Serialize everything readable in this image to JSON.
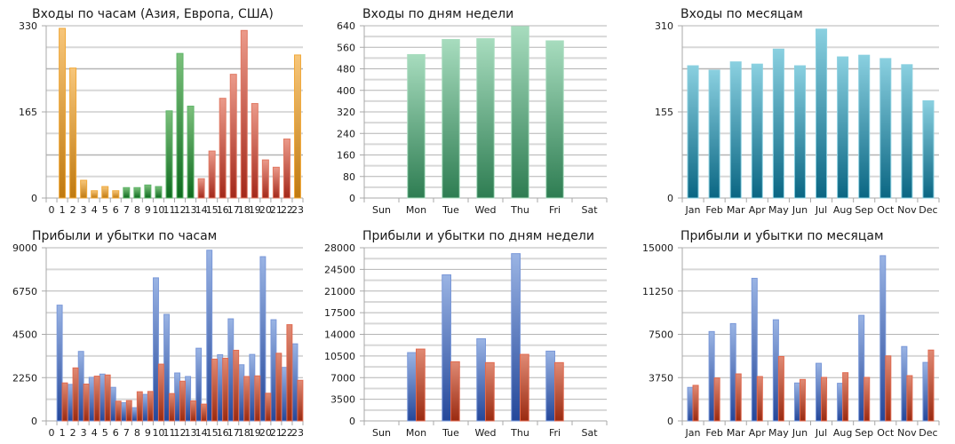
{
  "chart_data": [
    {
      "id": "entries-by-hour",
      "type": "bar",
      "title": "Входы по часам (Азия, Европа, США)",
      "xlabel": "",
      "ylabel": "",
      "ylim": [
        0,
        330
      ],
      "yticks": [
        "0",
        "165",
        "330"
      ],
      "grid": true,
      "categories": [
        "0",
        "1",
        "2",
        "3",
        "4",
        "5",
        "6",
        "7",
        "8",
        "9",
        "10",
        "11",
        "12",
        "13",
        "14",
        "15",
        "16",
        "17",
        "18",
        "19",
        "20",
        "21",
        "22",
        "23"
      ],
      "values": [
        0,
        325,
        249,
        34,
        14,
        22,
        14,
        20,
        20,
        25,
        22,
        167,
        277,
        176,
        37,
        90,
        191,
        237,
        321,
        181,
        73,
        59,
        113,
        274
      ],
      "color_groups": [
        "none",
        "asia",
        "asia",
        "asia",
        "asia",
        "asia",
        "asia",
        "europe",
        "europe",
        "europe",
        "europe",
        "europe",
        "europe",
        "europe",
        "usa",
        "usa",
        "usa",
        "usa",
        "usa",
        "usa",
        "usa",
        "usa",
        "usa",
        "asia"
      ],
      "palette": {
        "asia": [
          "#f7c67a",
          "#c07a10"
        ],
        "europe": [
          "#7cc07c",
          "#0d6a1e"
        ],
        "usa": [
          "#eb9a8a",
          "#a3281a"
        ],
        "none": [
          "#ffffff",
          "#ffffff"
        ]
      },
      "legend": "none"
    },
    {
      "id": "entries-by-weekday",
      "type": "bar",
      "title": "Входы по дням недели",
      "xlabel": "",
      "ylabel": "",
      "ylim": [
        0,
        640
      ],
      "yticks": [
        "0",
        "80",
        "160",
        "240",
        "320",
        "400",
        "480",
        "560",
        "640"
      ],
      "grid": true,
      "categories": [
        "Sun",
        "Mon",
        "Tue",
        "Wed",
        "Thu",
        "Fri",
        "Sat"
      ],
      "values": [
        0,
        533,
        589,
        592,
        637,
        584,
        0
      ],
      "palette": {
        "main": [
          "#a7dcbe",
          "#2e7d52"
        ]
      },
      "legend": "none"
    },
    {
      "id": "entries-by-month",
      "type": "bar",
      "title": "Входы по месяцам",
      "xlabel": "",
      "ylabel": "",
      "ylim": [
        0,
        310
      ],
      "yticks": [
        "0",
        "155",
        "310"
      ],
      "grid": true,
      "categories": [
        "Jan",
        "Feb",
        "Mar",
        "Apr",
        "May",
        "Jun",
        "Jul",
        "Aug",
        "Sep",
        "Oct",
        "Nov",
        "Dec"
      ],
      "values": [
        238,
        230,
        245,
        241,
        268,
        238,
        304,
        254,
        257,
        251,
        240,
        175
      ],
      "palette": {
        "main": [
          "#8ad0e0",
          "#0a6683"
        ]
      },
      "legend": "none"
    },
    {
      "id": "pnl-by-hour",
      "type": "bar",
      "title": "Прибыли и убытки по часам",
      "xlabel": "",
      "ylabel": "",
      "ylim": [
        0,
        9000
      ],
      "yticks": [
        "0",
        "2250",
        "4500",
        "6750",
        "9000"
      ],
      "grid": true,
      "categories": [
        "0",
        "1",
        "2",
        "3",
        "4",
        "5",
        "6",
        "7",
        "8",
        "9",
        "10",
        "11",
        "12",
        "13",
        "14",
        "15",
        "16",
        "17",
        "18",
        "19",
        "20",
        "21",
        "22",
        "23"
      ],
      "series": [
        {
          "name": "Прибыли",
          "color": "blue",
          "values": [
            0,
            6017,
            1898,
            3613,
            2266,
            2434,
            1745,
            949,
            689,
            1378,
            7436,
            5536,
            2492,
            2309,
            3778,
            8872,
            3443,
            5306,
            2919,
            3456,
            8537,
            5260,
            2782,
            4007
          ]
        },
        {
          "name": "Убытки",
          "color": "red",
          "values": [
            0,
            1975,
            2756,
            1914,
            2327,
            2388,
            1026,
            1056,
            1516,
            1531,
            2951,
            1423,
            2066,
            1040,
            872,
            3213,
            3259,
            3672,
            2309,
            2341,
            1437,
            3516,
            5003,
            2111
          ]
        }
      ],
      "palette": {
        "blue": [
          "#9ab4e4",
          "#24479a"
        ],
        "red": [
          "#e08a74",
          "#9a2a10"
        ]
      },
      "legend": "none"
    },
    {
      "id": "pnl-by-weekday",
      "type": "bar",
      "title": "Прибыли и убытки по дням недели",
      "xlabel": "",
      "ylabel": "",
      "ylim": [
        0,
        28000
      ],
      "yticks": [
        "0",
        "3500",
        "7000",
        "10500",
        "14000",
        "17500",
        "21000",
        "24500",
        "28000"
      ],
      "grid": true,
      "categories": [
        "Sun",
        "Mon",
        "Tue",
        "Wed",
        "Thu",
        "Fri",
        "Sat"
      ],
      "series": [
        {
          "name": "Прибыли",
          "color": "blue",
          "values": [
            0,
            11048,
            23619,
            13286,
            27048,
            11286,
            0
          ]
        },
        {
          "name": "Убытки",
          "color": "red",
          "values": [
            0,
            11619,
            9571,
            9429,
            10762,
            9429,
            0
          ]
        }
      ],
      "palette": {
        "blue": [
          "#9ab4e4",
          "#24479a"
        ],
        "red": [
          "#e08a74",
          "#9a2a10"
        ]
      },
      "legend": "none"
    },
    {
      "id": "pnl-by-month",
      "type": "bar",
      "title": "Прибыли и убытки по месяцам",
      "xlabel": "",
      "ylabel": "",
      "ylim": [
        0,
        15000
      ],
      "yticks": [
        "0",
        "3750",
        "7500",
        "11250",
        "15000"
      ],
      "grid": true,
      "categories": [
        "Jan",
        "Feb",
        "Mar",
        "Apr",
        "May",
        "Jun",
        "Jul",
        "Aug",
        "Sep",
        "Oct",
        "Nov",
        "Dec"
      ],
      "series": [
        {
          "name": "Прибыли",
          "color": "blue",
          "values": [
            2904,
            7743,
            8431,
            12353,
            8762,
            3286,
            4992,
            3260,
            9144,
            14314,
            6444,
            5069
          ]
        },
        {
          "name": "Убытки",
          "color": "red",
          "values": [
            3082,
            3719,
            4075,
            3846,
            5578,
            3591,
            3770,
            4177,
            3770,
            5629,
            3922,
            6138
          ]
        }
      ],
      "palette": {
        "blue": [
          "#9ab4e4",
          "#24479a"
        ],
        "red": [
          "#e08a74",
          "#9a2a10"
        ]
      },
      "legend": "none"
    }
  ]
}
